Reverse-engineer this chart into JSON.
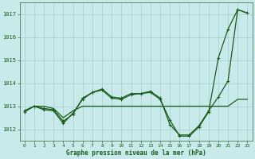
{
  "title": "Graphe pression niveau de la mer (hPa)",
  "background_color": "#c8eaea",
  "grid_color": "#a8cccc",
  "line_color": "#1a5c1a",
  "xlim": [
    -0.5,
    23.5
  ],
  "ylim": [
    1011.5,
    1017.5
  ],
  "yticks": [
    1012,
    1013,
    1014,
    1015,
    1016,
    1017
  ],
  "xticks": [
    0,
    1,
    2,
    3,
    4,
    5,
    6,
    7,
    8,
    9,
    10,
    11,
    12,
    13,
    14,
    15,
    16,
    17,
    18,
    19,
    20,
    21,
    22,
    23
  ],
  "series1_x": [
    0,
    1,
    2,
    3,
    4,
    5,
    6,
    7,
    8,
    9,
    10,
    11,
    12,
    13,
    14,
    15,
    16,
    17,
    18,
    19,
    20,
    21,
    22,
    23
  ],
  "series1_y": [
    1012.8,
    1013.0,
    1013.0,
    1012.9,
    1012.5,
    1012.8,
    1013.0,
    1013.0,
    1013.0,
    1013.0,
    1013.0,
    1013.0,
    1013.0,
    1013.0,
    1013.0,
    1013.0,
    1013.0,
    1013.0,
    1013.0,
    1013.0,
    1013.0,
    1013.0,
    1013.3,
    1013.3
  ],
  "series2_x": [
    0,
    1,
    2,
    3,
    4,
    5,
    6,
    7,
    8,
    9,
    10,
    11,
    12,
    13,
    14,
    15,
    16,
    17,
    18,
    19,
    20,
    21,
    22,
    23
  ],
  "series2_y": [
    1012.8,
    1013.0,
    1012.9,
    1012.85,
    1012.35,
    1012.65,
    1013.35,
    1013.6,
    1013.75,
    1013.4,
    1013.35,
    1013.55,
    1013.55,
    1013.65,
    1013.35,
    1012.2,
    1011.75,
    1011.75,
    1012.15,
    1012.8,
    1013.4,
    1014.1,
    1017.2,
    1017.05
  ],
  "series3_x": [
    0,
    1,
    2,
    3,
    4,
    5,
    6,
    7,
    8,
    9,
    10,
    11,
    12,
    13,
    14,
    15,
    16,
    17,
    18,
    19,
    20,
    21,
    22,
    23
  ],
  "series3_y": [
    1012.75,
    1013.0,
    1012.85,
    1012.8,
    1012.25,
    1012.7,
    1013.3,
    1013.6,
    1013.7,
    1013.35,
    1013.3,
    1013.5,
    1013.55,
    1013.6,
    1013.3,
    1012.4,
    1011.7,
    1011.7,
    1012.1,
    1012.75,
    1015.1,
    1016.35,
    1017.2,
    1017.05
  ]
}
